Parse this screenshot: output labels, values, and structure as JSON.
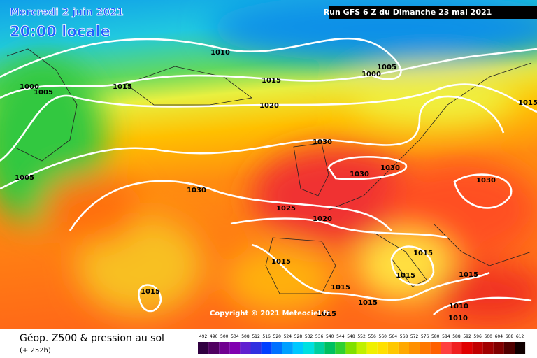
{
  "header": {
    "date": "Mercredi 2 juin 2021",
    "time": "20:00 locale",
    "run": "Run GFS 6 Z du Dimanche 23 mai 2021"
  },
  "isobar_labels": [
    1010,
    1005,
    1000,
    1015,
    1015,
    1000,
    1005,
    1020,
    1015,
    1030,
    1030,
    1030,
    1005,
    1030,
    1030,
    1025,
    1020,
    1015,
    1015,
    1015,
    1015,
    1015,
    1015,
    1015,
    1015,
    1010,
    1010
  ],
  "copyright": "Copyright © 2021 Meteociel.fr",
  "footer": {
    "title": "Géop. Z500 & pression au sol",
    "lead": "(+ 252h)"
  },
  "scale": {
    "values": [
      492,
      496,
      500,
      504,
      508,
      512,
      516,
      520,
      524,
      528,
      532,
      536,
      540,
      544,
      548,
      552,
      556,
      560,
      564,
      568,
      572,
      576,
      580,
      584,
      588,
      592,
      596,
      600,
      604,
      608,
      612
    ],
    "colors": [
      "#300040",
      "#500060",
      "#700090",
      "#8000b0",
      "#6020d0",
      "#3030e0",
      "#0040ff",
      "#0070ff",
      "#00a0ff",
      "#00c8ff",
      "#00e0e0",
      "#00d0a0",
      "#00c060",
      "#30d030",
      "#80e000",
      "#c0f000",
      "#f0f000",
      "#ffe000",
      "#ffc800",
      "#ffa800",
      "#ff9000",
      "#ff7800",
      "#ff6000",
      "#ff4040",
      "#f02020",
      "#e00000",
      "#c00000",
      "#a00000",
      "#800000",
      "#500000",
      "#100000"
    ]
  }
}
